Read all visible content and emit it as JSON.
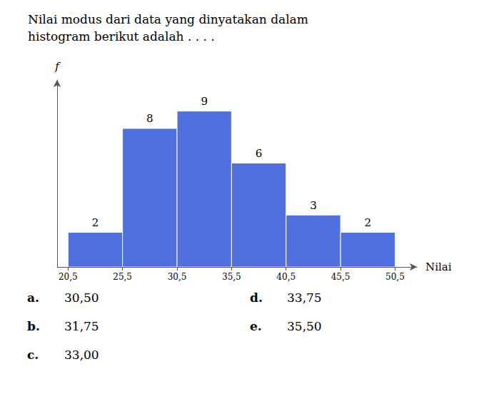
{
  "chart_data": {
    "type": "histogram",
    "title": "Nilai modus dari data yang dinyatakan dalam\nhistogram berikut adalah . . . .",
    "x_label": "Nilai",
    "y_label": "f",
    "bins": [
      20.5,
      25.5,
      30.5,
      35.5,
      40.5,
      45.5,
      50.5
    ],
    "values": [
      2,
      8,
      9,
      6,
      3,
      2
    ],
    "xlim": [
      19.5,
      52.5
    ],
    "ylim": [
      0,
      10.8
    ],
    "xticks": [
      {
        "value": 20.5,
        "label": "20,5"
      },
      {
        "value": 25.5,
        "label": "25,5"
      },
      {
        "value": 30.5,
        "label": "30,5"
      },
      {
        "value": 35.5,
        "label": "35,5"
      },
      {
        "value": 40.5,
        "label": "40,5"
      },
      {
        "value": 45.5,
        "label": "45,5"
      },
      {
        "value": 50.5,
        "label": "50,5"
      }
    ],
    "grid": false,
    "data_labels": true,
    "tick_labels": "x",
    "annotations": [
      {
        "label": "a.",
        "text": "30,50"
      },
      {
        "label": "b.",
        "text": "31,75"
      },
      {
        "label": "c.",
        "text": "33,00"
      },
      {
        "label": "d.",
        "text": "33,75"
      },
      {
        "label": "e.",
        "text": "35,50"
      }
    ]
  }
}
